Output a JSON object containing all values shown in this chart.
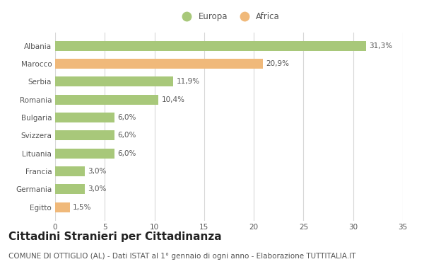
{
  "categories": [
    "Albania",
    "Marocco",
    "Serbia",
    "Romania",
    "Bulgaria",
    "Svizzera",
    "Lituania",
    "Francia",
    "Germania",
    "Egitto"
  ],
  "values": [
    31.3,
    20.9,
    11.9,
    10.4,
    6.0,
    6.0,
    6.0,
    3.0,
    3.0,
    1.5
  ],
  "labels": [
    "31,3%",
    "20,9%",
    "11,9%",
    "10,4%",
    "6,0%",
    "6,0%",
    "6,0%",
    "3,0%",
    "3,0%",
    "1,5%"
  ],
  "colors": [
    "#a8c87a",
    "#f0b97a",
    "#a8c87a",
    "#a8c87a",
    "#a8c87a",
    "#a8c87a",
    "#a8c87a",
    "#a8c87a",
    "#a8c87a",
    "#f0b97a"
  ],
  "europa_color": "#a8c87a",
  "africa_color": "#f0b97a",
  "background_color": "#ffffff",
  "grid_color": "#d8d8d8",
  "title": "Cittadini Stranieri per Cittadinanza",
  "subtitle": "COMUNE DI OTTIGLIO (AL) - Dati ISTAT al 1° gennaio di ogni anno - Elaborazione TUTTITALIA.IT",
  "xlim": [
    0,
    35
  ],
  "xticks": [
    0,
    5,
    10,
    15,
    20,
    25,
    30,
    35
  ],
  "bar_height": 0.55,
  "title_fontsize": 11,
  "subtitle_fontsize": 7.5,
  "label_fontsize": 7.5,
  "tick_fontsize": 7.5,
  "legend_fontsize": 8.5,
  "text_color": "#555555",
  "ytick_color": "#555555"
}
